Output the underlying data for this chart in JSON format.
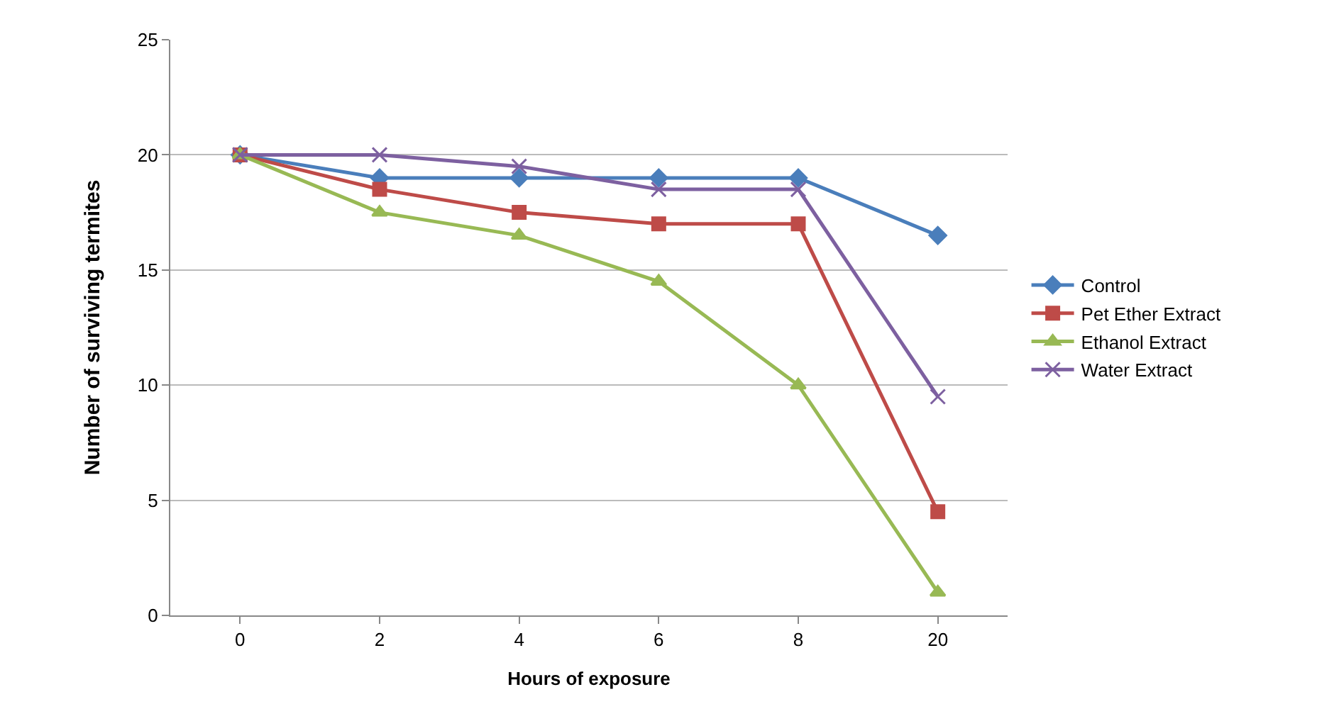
{
  "chart_data": {
    "type": "line",
    "xlabel": "Hours of exposure",
    "ylabel": "Number of surviving termites",
    "categories": [
      "0",
      "2",
      "4",
      "6",
      "8",
      "20"
    ],
    "series": [
      {
        "name": "Control",
        "color": "#4a7ebb",
        "marker": "diamond",
        "values": [
          20,
          19,
          19,
          19,
          19,
          16.5
        ]
      },
      {
        "name": "Pet Ether Extract",
        "color": "#be4b48",
        "marker": "square",
        "values": [
          20,
          18.5,
          17.5,
          17,
          17,
          4.5
        ]
      },
      {
        "name": "Ethanol Extract",
        "color": "#98b954",
        "marker": "triangle",
        "values": [
          20,
          17.5,
          16.5,
          14.5,
          10,
          1
        ]
      },
      {
        "name": "Water Extract",
        "color": "#7d60a0",
        "marker": "cross",
        "values": [
          20,
          20,
          19.5,
          18.5,
          18.5,
          9.5
        ]
      }
    ],
    "ylim": [
      0,
      25
    ],
    "yticks": [
      0,
      5,
      10,
      15,
      20,
      25
    ],
    "grid": "y",
    "legend": "right",
    "line_style": "solid"
  }
}
